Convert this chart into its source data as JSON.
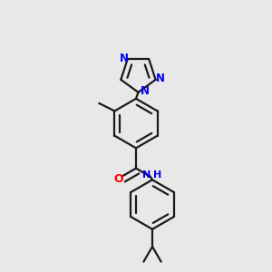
{
  "background_color": "#e8e8e8",
  "bond_color": "#1a1a1a",
  "N_color": "#0000ee",
  "O_color": "#ff0000",
  "NH_color": "#0000ee",
  "line_width": 1.6,
  "dbo": 0.018,
  "figsize": [
    3.0,
    3.0
  ],
  "dpi": 100,
  "xlim": [
    0.1,
    0.9
  ],
  "ylim": [
    0.02,
    0.98
  ]
}
